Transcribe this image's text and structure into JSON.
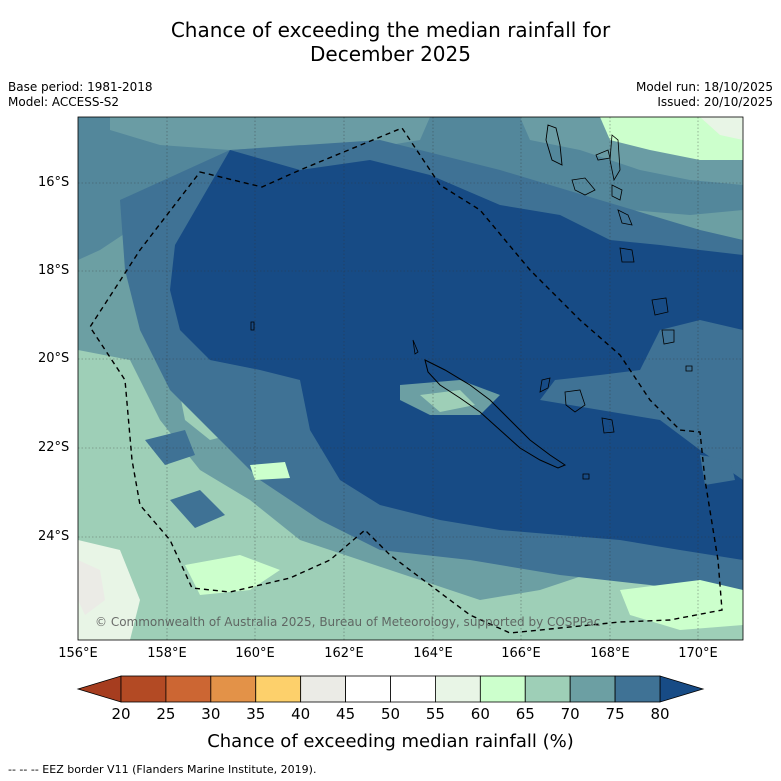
{
  "title_line1": "Chance of exceeding the median rainfall for",
  "title_line2": "December 2025",
  "meta": {
    "base_period": "Base period: 1981-2018",
    "model": "Model: ACCESS-S2",
    "model_run": "Model run: 18/10/2025",
    "issued": "Issued: 20/10/2025"
  },
  "lat_labels": [
    "16°S",
    "18°S",
    "20°S",
    "22°S",
    "24°S"
  ],
  "lon_labels": [
    "156°E",
    "158°E",
    "160°E",
    "162°E",
    "164°E",
    "166°E",
    "168°E",
    "170°E"
  ],
  "copyright": "© Commonwealth of Australia 2025, Bureau of Meteorology, supported by COSPPac",
  "colorbar": {
    "ticks": [
      "20",
      "25",
      "30",
      "35",
      "40",
      "45",
      "50",
      "55",
      "60",
      "65",
      "70",
      "75",
      "80"
    ],
    "colors": [
      "#a63d1f",
      "#b34a24",
      "#cc6633",
      "#e39248",
      "#fdd06b",
      "#ebebe6",
      "#ffffff",
      "#ffffff",
      "#e8f5e6",
      "#ccffcc",
      "#9ecfb7",
      "#6c9fa3",
      "#3f7295",
      "#174b85"
    ],
    "title": "Chance of exceeding median rainfall (%)"
  },
  "footnote": "--  --  -- EEZ border V11 (Flanders Marine Institute, 2019).",
  "legend_colors": {
    "p80": "#174b85",
    "p75": "#3f7295",
    "p70": "#6c9fa3",
    "p65": "#9ecfb7",
    "p60": "#ccffcc",
    "p55": "#e8f5e6",
    "p45": "#ebebe6"
  }
}
